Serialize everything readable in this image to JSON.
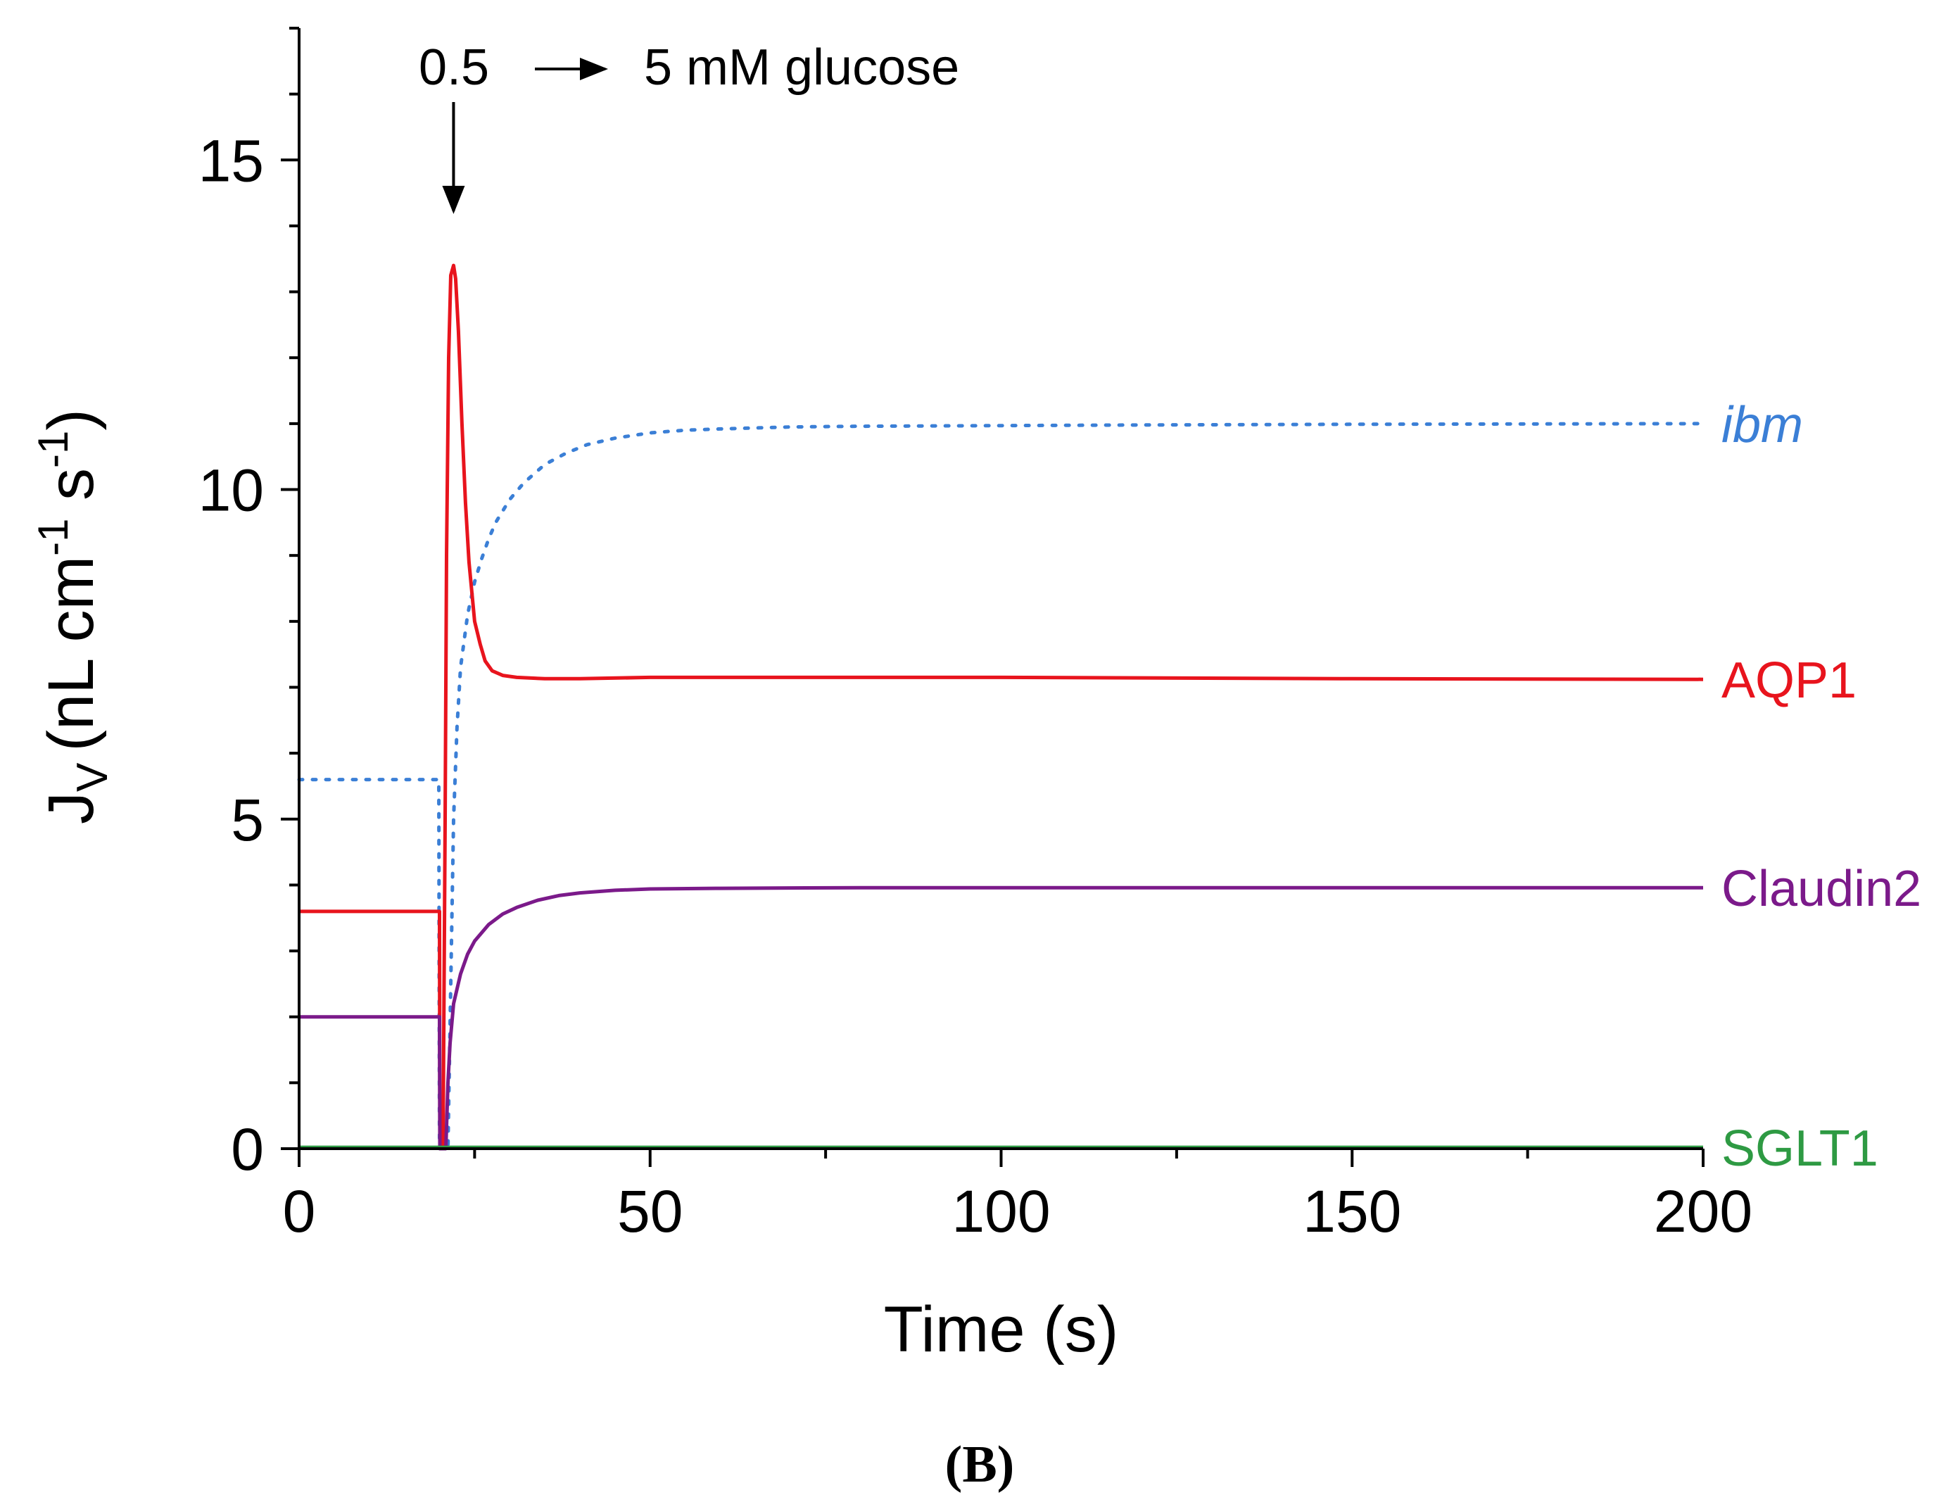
{
  "chart_data": {
    "type": "line",
    "title": "",
    "xlabel": "Time (s)",
    "ylabel": {
      "main": "J",
      "sub": "V",
      "unit_prefix": "(nL cm",
      "exp1": "-1",
      "unit_mid": " s",
      "exp2": "-1",
      "unit_suffix": ")"
    },
    "xlim": [
      0,
      200
    ],
    "ylim": [
      0,
      17
    ],
    "xticks": [
      0,
      50,
      100,
      150,
      200
    ],
    "xtick_labels": [
      "0",
      "50",
      "100",
      "150",
      "200"
    ],
    "yticks": [
      0,
      5,
      10,
      15
    ],
    "ytick_labels": [
      "0",
      "5",
      "10",
      "15"
    ],
    "x_minor_step": 25,
    "y_minor_step": 1,
    "annotation": {
      "from_label": "0.5",
      "to_label": "5 mM glucose",
      "x": 22
    },
    "panel_label": "(B)",
    "series": [
      {
        "name": "ibm",
        "label": "ibm",
        "color": "#3b7fd6",
        "style": "dotted",
        "italic": true,
        "x": [
          0,
          19.9,
          20,
          21.2,
          21.6,
          22,
          22.5,
          23,
          24,
          25,
          26,
          27,
          28,
          30,
          32,
          35,
          38,
          41,
          45,
          50,
          55,
          60,
          70,
          80,
          100,
          120,
          150,
          200
        ],
        "y": [
          5.6,
          5.6,
          0.0,
          0.0,
          2.5,
          5.0,
          6.4,
          7.3,
          8.1,
          8.6,
          8.95,
          9.25,
          9.5,
          9.85,
          10.1,
          10.38,
          10.55,
          10.68,
          10.78,
          10.86,
          10.9,
          10.92,
          10.95,
          10.96,
          10.97,
          10.98,
          10.99,
          11.0
        ]
      },
      {
        "name": "AQP1",
        "label": "AQP1",
        "color": "#e8141d",
        "style": "solid",
        "italic": false,
        "x": [
          0,
          20,
          20.05,
          20.5,
          20.8,
          21.0,
          21.3,
          21.6,
          22.0,
          22.3,
          22.7,
          23.2,
          23.7,
          24.2,
          25.0,
          25.8,
          26.5,
          27.5,
          29,
          31,
          35,
          40,
          50,
          100,
          150,
          200
        ],
        "y": [
          3.6,
          3.6,
          0.0,
          0.0,
          5.0,
          9.0,
          12.0,
          13.25,
          13.4,
          13.2,
          12.4,
          11.0,
          9.8,
          8.9,
          8.0,
          7.65,
          7.4,
          7.25,
          7.18,
          7.15,
          7.13,
          7.13,
          7.15,
          7.15,
          7.13,
          7.12
        ]
      },
      {
        "name": "Claudin2",
        "label": "Claudin2",
        "color": "#7b1a8a",
        "style": "solid",
        "italic": false,
        "x": [
          0,
          20,
          20.05,
          20.9,
          21.2,
          21.5,
          22,
          23,
          24,
          25,
          27,
          29,
          31,
          34,
          37,
          40,
          45,
          50,
          60,
          80,
          100,
          150,
          200
        ],
        "y": [
          2.0,
          2.0,
          0.0,
          0.0,
          1.0,
          1.6,
          2.2,
          2.65,
          2.95,
          3.15,
          3.4,
          3.56,
          3.66,
          3.77,
          3.84,
          3.88,
          3.92,
          3.94,
          3.95,
          3.96,
          3.96,
          3.96,
          3.96
        ]
      },
      {
        "name": "SGLT1",
        "label": "SGLT1",
        "color": "#2e9a43",
        "style": "solid",
        "italic": false,
        "x": [
          0,
          20,
          22,
          200
        ],
        "y": [
          0.02,
          0.02,
          0.02,
          0.02
        ]
      }
    ]
  }
}
